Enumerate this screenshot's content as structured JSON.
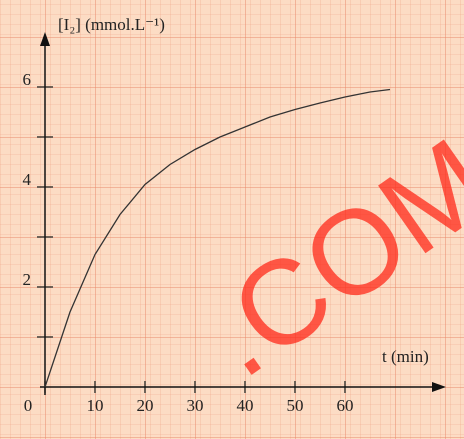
{
  "chart_data": {
    "type": "line",
    "y_label": "[I₂] (mmol.L⁻¹)",
    "x_label": "t (min)",
    "watermark": ".COM",
    "x": [
      0,
      5,
      10,
      15,
      20,
      25,
      30,
      35,
      40,
      45,
      50,
      55,
      60,
      65,
      69
    ],
    "series": [
      {
        "name": "[I₂]",
        "color": "#333333",
        "values": [
          0,
          1.5,
          2.65,
          3.45,
          4.05,
          4.45,
          4.75,
          5.0,
          5.2,
          5.4,
          5.55,
          5.68,
          5.8,
          5.9,
          5.95
        ]
      }
    ],
    "xlim": [
      0,
      78
    ],
    "ylim": [
      0,
      6.8
    ],
    "xticks": [
      0,
      10,
      20,
      30,
      40,
      50,
      60
    ],
    "yticks": [
      2,
      4,
      6
    ],
    "yminor_ticks": [
      1,
      3,
      5
    ]
  }
}
